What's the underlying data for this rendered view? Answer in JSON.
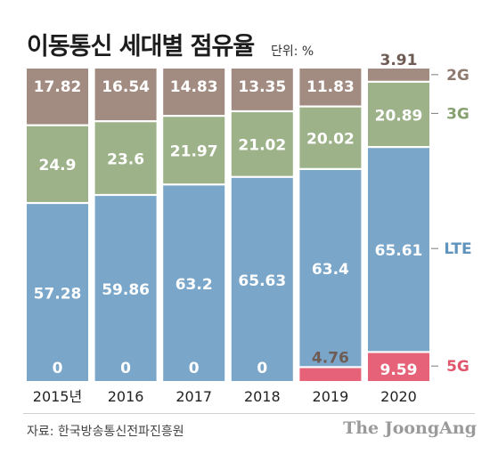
{
  "title": "이동통신 세대별 점유율",
  "unit": "단위: %",
  "source": "자료: 한국방송통신전파진흥원",
  "brand": "The JoongAng",
  "colors": {
    "2G": "#a28c82",
    "3G": "#9db289",
    "LTE": "#7aa6c9",
    "5G": "#e56278",
    "label_2G": "#8f7a70",
    "label_3G": "#86a070",
    "label_LTE": "#5f94bf",
    "label_5G": "#e0566c"
  },
  "chart_data": {
    "type": "bar",
    "stacked": true,
    "categories": [
      "2015년",
      "2016",
      "2017",
      "2018",
      "2019",
      "2020"
    ],
    "series": [
      {
        "name": "5G",
        "values": [
          0,
          0,
          0,
          0,
          4.76,
          9.59
        ]
      },
      {
        "name": "LTE",
        "values": [
          57.28,
          59.86,
          63.2,
          65.63,
          63.4,
          65.61
        ]
      },
      {
        "name": "3G",
        "values": [
          24.9,
          23.6,
          21.97,
          21.02,
          20.02,
          20.89
        ]
      },
      {
        "name": "2G",
        "values": [
          17.82,
          16.54,
          14.83,
          13.35,
          11.83,
          3.91
        ]
      }
    ],
    "series_labels": [
      "2G",
      "3G",
      "LTE",
      "5G"
    ]
  }
}
